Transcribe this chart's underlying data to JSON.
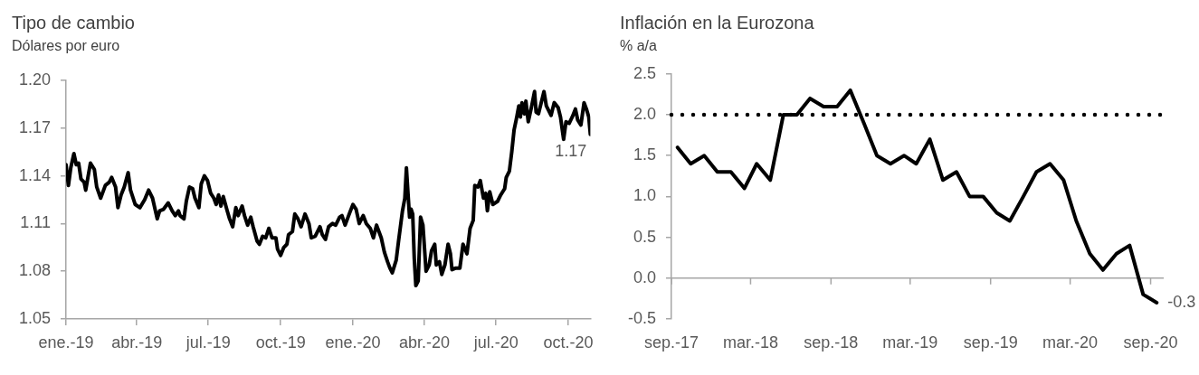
{
  "chart_data": [
    {
      "type": "line",
      "title": "Tipo de cambio",
      "subtitle": "Dólares por euro",
      "x": [
        "2019-01-01",
        "2019-01-04",
        "2019-01-07",
        "2019-01-11",
        "2019-01-14",
        "2019-01-17",
        "2019-01-20",
        "2019-01-24",
        "2019-01-26",
        "2019-02-01",
        "2019-02-06",
        "2019-02-09",
        "2019-02-14",
        "2019-02-20",
        "2019-02-25",
        "2019-02-28",
        "2019-03-05",
        "2019-03-08",
        "2019-03-12",
        "2019-03-16",
        "2019-03-21",
        "2019-03-24",
        "2019-03-30",
        "2019-04-05",
        "2019-04-11",
        "2019-04-16",
        "2019-04-21",
        "2019-04-27",
        "2019-04-30",
        "2019-05-05",
        "2019-05-11",
        "2019-05-16",
        "2019-05-20",
        "2019-05-24",
        "2019-05-26",
        "2019-05-31",
        "2019-06-03",
        "2019-06-07",
        "2019-06-11",
        "2019-06-14",
        "2019-06-19",
        "2019-06-22",
        "2019-06-26",
        "2019-06-30",
        "2019-07-04",
        "2019-07-08",
        "2019-07-11",
        "2019-07-14",
        "2019-07-17",
        "2019-07-20",
        "2019-07-25",
        "2019-07-28",
        "2019-08-01",
        "2019-08-05",
        "2019-08-08",
        "2019-08-13",
        "2019-08-16",
        "2019-08-20",
        "2019-08-24",
        "2019-08-27",
        "2019-09-01",
        "2019-09-04",
        "2019-09-08",
        "2019-09-12",
        "2019-09-16",
        "2019-09-20",
        "2019-09-25",
        "2019-09-27",
        "2019-10-01",
        "2019-10-05",
        "2019-10-09",
        "2019-10-11",
        "2019-10-16",
        "2019-10-19",
        "2019-10-23",
        "2019-10-27",
        "2019-11-01",
        "2019-11-06",
        "2019-11-09",
        "2019-11-14",
        "2019-11-20",
        "2019-11-23",
        "2019-11-27",
        "2019-12-01",
        "2019-12-06",
        "2019-12-10",
        "2019-12-15",
        "2019-12-18",
        "2019-12-22",
        "2019-12-28",
        "2020-01-01",
        "2020-01-05",
        "2020-01-09",
        "2020-01-14",
        "2020-01-18",
        "2020-01-23",
        "2020-01-27",
        "2020-01-31",
        "2020-02-06",
        "2020-02-10",
        "2020-02-14",
        "2020-02-17",
        "2020-02-20",
        "2020-02-25",
        "2020-02-28",
        "2020-03-04",
        "2020-03-07",
        "2020-03-09",
        "2020-03-11",
        "2020-03-13",
        "2020-03-15",
        "2020-03-17",
        "2020-03-19",
        "2020-03-21",
        "2020-03-24",
        "2020-03-27",
        "2020-03-30",
        "2020-04-03",
        "2020-04-07",
        "2020-04-10",
        "2020-04-14",
        "2020-04-16",
        "2020-04-20",
        "2020-04-23",
        "2020-04-27",
        "2020-05-01",
        "2020-05-04",
        "2020-05-06",
        "2020-05-11",
        "2020-05-16",
        "2020-05-20",
        "2020-05-25",
        "2020-05-29",
        "2020-06-02",
        "2020-06-04",
        "2020-06-08",
        "2020-06-11",
        "2020-06-15",
        "2020-06-18",
        "2020-06-20",
        "2020-06-23",
        "2020-06-27",
        "2020-07-03",
        "2020-07-07",
        "2020-07-12",
        "2020-07-14",
        "2020-07-18",
        "2020-07-21",
        "2020-07-24",
        "2020-07-27",
        "2020-07-30",
        "2020-08-01",
        "2020-08-03",
        "2020-08-06",
        "2020-08-08",
        "2020-08-11",
        "2020-08-15",
        "2020-08-19",
        "2020-08-21",
        "2020-08-24",
        "2020-08-28",
        "2020-08-31",
        "2020-09-03",
        "2020-09-07",
        "2020-09-09",
        "2020-09-13",
        "2020-09-18",
        "2020-09-21",
        "2020-09-25",
        "2020-09-28",
        "2020-10-02",
        "2020-10-06",
        "2020-10-10",
        "2020-10-13",
        "2020-10-17",
        "2020-10-21",
        "2020-10-24",
        "2020-10-27",
        "2020-10-29"
      ],
      "series": [
        {
          "color": "#000000",
          "values": [
            1.147,
            1.134,
            1.145,
            1.154,
            1.147,
            1.148,
            1.138,
            1.136,
            1.131,
            1.148,
            1.144,
            1.133,
            1.126,
            1.134,
            1.136,
            1.139,
            1.133,
            1.12,
            1.128,
            1.133,
            1.142,
            1.131,
            1.122,
            1.12,
            1.125,
            1.131,
            1.126,
            1.113,
            1.118,
            1.119,
            1.123,
            1.118,
            1.115,
            1.118,
            1.115,
            1.113,
            1.124,
            1.133,
            1.132,
            1.126,
            1.12,
            1.135,
            1.14,
            1.137,
            1.129,
            1.126,
            1.122,
            1.128,
            1.121,
            1.127,
            1.118,
            1.113,
            1.108,
            1.12,
            1.115,
            1.121,
            1.115,
            1.109,
            1.114,
            1.108,
            1.099,
            1.097,
            1.102,
            1.101,
            1.107,
            1.101,
            1.101,
            1.094,
            1.09,
            1.095,
            1.097,
            1.103,
            1.105,
            1.116,
            1.113,
            1.108,
            1.116,
            1.11,
            1.101,
            1.102,
            1.108,
            1.103,
            1.1,
            1.108,
            1.11,
            1.109,
            1.114,
            1.115,
            1.109,
            1.117,
            1.122,
            1.119,
            1.11,
            1.115,
            1.11,
            1.107,
            1.101,
            1.109,
            1.101,
            1.092,
            1.086,
            1.082,
            1.079,
            1.087,
            1.099,
            1.118,
            1.126,
            1.145,
            1.129,
            1.114,
            1.119,
            1.116,
            1.088,
            1.071,
            1.074,
            1.114,
            1.109,
            1.08,
            1.084,
            1.093,
            1.097,
            1.084,
            1.086,
            1.078,
            1.084,
            1.097,
            1.091,
            1.081,
            1.082,
            1.082,
            1.097,
            1.091,
            1.107,
            1.112,
            1.134,
            1.133,
            1.137,
            1.126,
            1.129,
            1.118,
            1.13,
            1.122,
            1.124,
            1.128,
            1.132,
            1.139,
            1.143,
            1.155,
            1.169,
            1.176,
            1.184,
            1.177,
            1.186,
            1.179,
            1.187,
            1.174,
            1.183,
            1.193,
            1.18,
            1.179,
            1.187,
            1.193,
            1.184,
            1.18,
            1.178,
            1.186,
            1.183,
            1.177,
            1.163,
            1.174,
            1.173,
            1.177,
            1.182,
            1.175,
            1.172,
            1.186,
            1.182,
            1.177,
            1.166
          ]
        }
      ],
      "xlim": [
        "2019-01-01",
        "2020-10-29"
      ],
      "xticks": [
        {
          "value": "2019-01-01",
          "label": "ene.-19"
        },
        {
          "value": "2019-04-01",
          "label": "abr.-19"
        },
        {
          "value": "2019-07-01",
          "label": "jul.-19"
        },
        {
          "value": "2019-10-01",
          "label": "oct.-19"
        },
        {
          "value": "2020-01-01",
          "label": "ene.-20"
        },
        {
          "value": "2020-04-01",
          "label": "abr.-20"
        },
        {
          "value": "2020-07-01",
          "label": "jul.-20"
        },
        {
          "value": "2020-10-01",
          "label": "oct.-20"
        }
      ],
      "ylim": [
        1.05,
        1.2
      ],
      "yticks": [
        1.05,
        1.08,
        1.11,
        1.14,
        1.17,
        {
          "value": 1.2,
          "label": "1.20"
        }
      ],
      "annotations": [
        {
          "text": "1.17",
          "x": "2020-10-29",
          "y": 1.166
        }
      ]
    },
    {
      "type": "line",
      "title": "Inflación en la Eurozona",
      "subtitle": "% a/a",
      "x": [
        "2017-09-15",
        "2017-10-15",
        "2017-11-15",
        "2017-12-15",
        "2018-01-15",
        "2018-02-15",
        "2018-03-15",
        "2018-04-15",
        "2018-05-15",
        "2018-06-15",
        "2018-07-15",
        "2018-08-15",
        "2018-09-15",
        "2018-10-15",
        "2018-11-15",
        "2018-12-15",
        "2019-01-15",
        "2019-02-15",
        "2019-03-15",
        "2019-04-15",
        "2019-05-15",
        "2019-06-15",
        "2019-07-15",
        "2019-08-15",
        "2019-09-15",
        "2019-10-15",
        "2019-11-15",
        "2019-12-15",
        "2020-01-15",
        "2020-02-15",
        "2020-03-15",
        "2020-04-15",
        "2020-05-15",
        "2020-06-15",
        "2020-07-15",
        "2020-08-15",
        "2020-09-15"
      ],
      "series": [
        {
          "color": "#000000",
          "values": [
            1.6,
            1.4,
            1.5,
            1.3,
            1.3,
            1.1,
            1.4,
            1.2,
            2.0,
            2.0,
            2.2,
            2.1,
            2.1,
            2.3,
            1.9,
            1.5,
            1.4,
            1.5,
            1.4,
            1.7,
            1.2,
            1.3,
            1.0,
            1.0,
            0.8,
            0.7,
            1.0,
            1.3,
            1.4,
            1.2,
            0.7,
            0.3,
            0.1,
            0.3,
            0.4,
            -0.2,
            -0.3
          ]
        }
      ],
      "xlim": [
        "2017-09-01",
        "2020-10-01"
      ],
      "xticks": [
        {
          "value": "2017-09-01",
          "label": "sep.-17"
        },
        {
          "value": "2018-03-01",
          "label": "mar.-18"
        },
        {
          "value": "2018-09-01",
          "label": "sep.-18"
        },
        {
          "value": "2019-03-01",
          "label": "mar.-19"
        },
        {
          "value": "2019-09-01",
          "label": "sep.-19"
        },
        {
          "value": "2020-03-01",
          "label": "mar.-20"
        },
        {
          "value": "2020-09-01",
          "label": "sep.-20"
        }
      ],
      "ylim": [
        -0.5,
        2.5
      ],
      "yticks": [
        -0.5,
        {
          "value": 0,
          "label": "0.0"
        },
        0.5,
        {
          "value": 1,
          "label": "1.0"
        },
        1.5,
        {
          "value": 2,
          "label": "2.0"
        },
        2.5
      ],
      "ref_lines": [
        {
          "axis": "y",
          "value": 2,
          "line_style": "dotted",
          "color": "#000000"
        }
      ],
      "annotations": [
        {
          "text": "-0.3",
          "x": "2020-09-15",
          "y": -0.3
        }
      ]
    }
  ]
}
